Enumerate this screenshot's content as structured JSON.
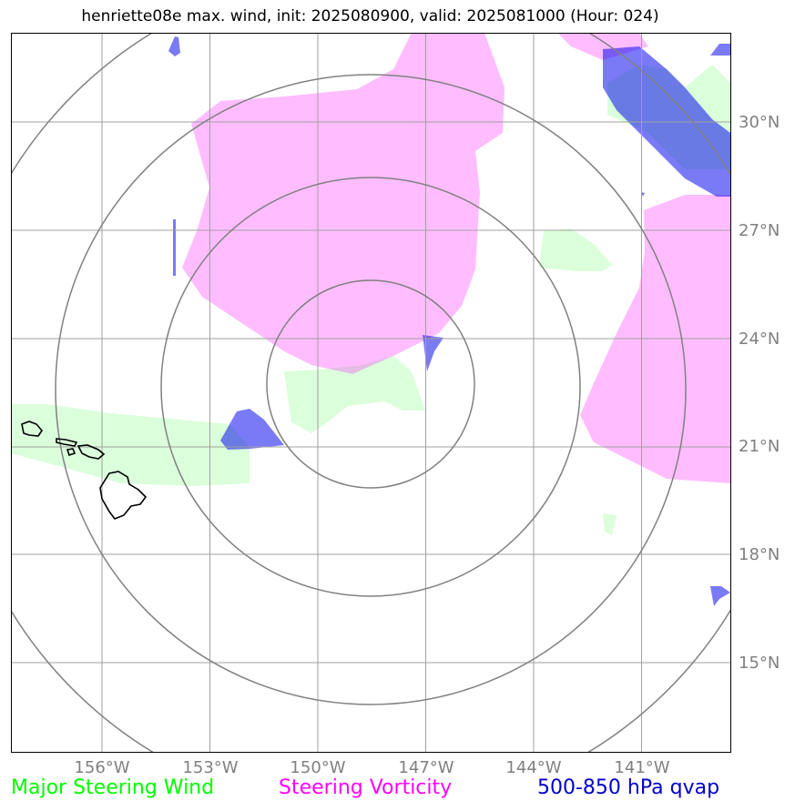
{
  "title": "henriette08e max. wind, init: 2025080900, valid: 2025081000 (Hour: 024)",
  "lat_labels": [
    "30°N",
    "27°N",
    "24°N",
    "21°N",
    "18°N",
    "15°N"
  ],
  "lon_labels": [
    "156°W",
    "153°W",
    "150°W",
    "147°W",
    "144°W",
    "141°W"
  ],
  "legend": {
    "steering_wind": "Major Steering Wind",
    "steering_vorticity": "Steering Vorticity",
    "qvap": "500-850 hPa qvap"
  },
  "colors": {
    "steering_wind": "#00ff00",
    "steering_vorticity": "#ff00ff",
    "qvap": "#0000cc",
    "gridline": "#a0a0a0",
    "range_rings": "#808080",
    "coastline": "#000000"
  },
  "map_extent": {
    "lon_min": -158.5,
    "lon_max": -138.5,
    "lat_min": 12.5,
    "lat_max": 32.5
  },
  "storm_center": {
    "lon": -148.5,
    "lat": 22.2
  }
}
